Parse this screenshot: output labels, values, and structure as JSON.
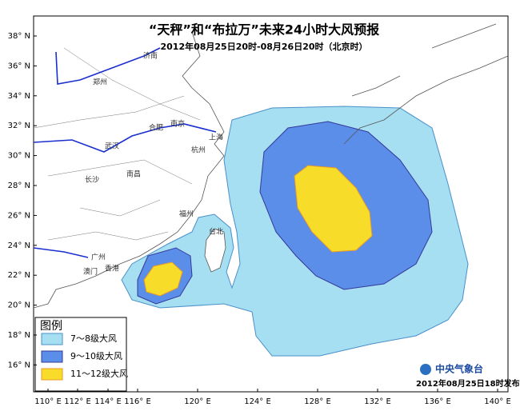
{
  "title": "“天秤”和“布拉万”未来24小时大风预报",
  "subtitle": "2012年08月25日20时-08月26日20时（北京时）",
  "latitude_labels": [
    "38° N",
    "36° N",
    "34° N",
    "32° N",
    "30° N",
    "28° N",
    "26° N",
    "24° N",
    "22° N",
    "20° N",
    "18° N",
    "16° N"
  ],
  "longitude_labels": [
    "110° E",
    "112° E",
    "114° E",
    "116° E",
    "120° E",
    "124° E",
    "128° E",
    "132° E",
    "136° E",
    "140° E"
  ],
  "cities": [
    "济南",
    "郑州",
    "合肥",
    "南京",
    "上海",
    "武汉",
    "杭州",
    "长沙",
    "南昌",
    "福州",
    "台北",
    "广州",
    "香港",
    "澳门"
  ],
  "legend": {
    "title": "图例",
    "items": [
      "7～8级大风",
      "9～10级大风",
      "11～12级大风"
    ]
  },
  "logo": "中央气象台",
  "footer": "2012年08月25日18时发布"
}
